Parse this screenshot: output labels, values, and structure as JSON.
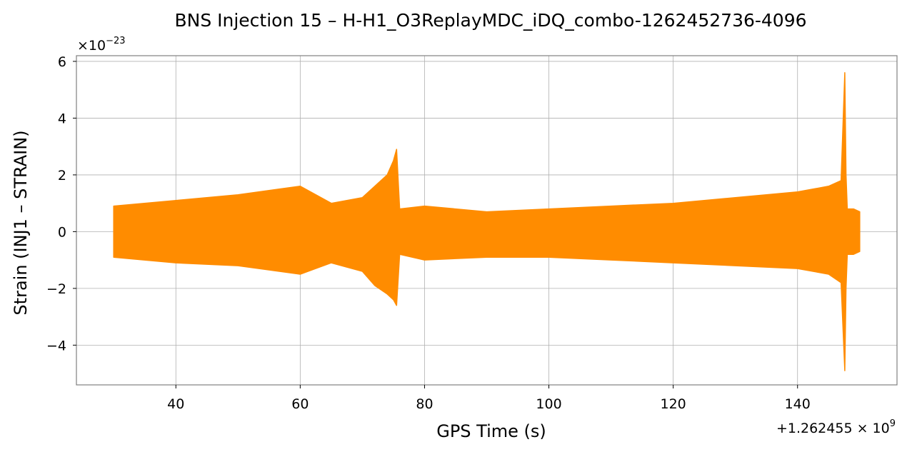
{
  "chart_data": {
    "type": "line",
    "title": "BNS Injection 15 – H-H1_O3ReplayMDC_iDQ_combo-1262452736-4096",
    "xlabel": "GPS Time (s)",
    "ylabel": "Strain (INJ1 – STRAIN)",
    "y_scale_prefix": "×10",
    "y_scale_exponent": "−23",
    "x_offset_prefix": "+1.262455 × 10",
    "x_offset_exponent": "9",
    "xlim": [
      24,
      156
    ],
    "ylim": [
      -5.4,
      6.2
    ],
    "x_ticks": [
      40,
      60,
      80,
      100,
      120,
      140
    ],
    "x_tick_labels": [
      "40",
      "60",
      "80",
      "100",
      "120",
      "140"
    ],
    "y_ticks": [
      -4,
      -2,
      0,
      2,
      4,
      6
    ],
    "y_tick_labels": [
      "−4",
      "−2",
      "0",
      "2",
      "4",
      "6"
    ],
    "grid": true,
    "series": [
      {
        "color": "#ff8c00",
        "x": [
          30,
          40,
          50,
          60,
          65,
          70,
          72,
          74,
          75,
          75.5,
          76,
          80,
          90,
          100,
          110,
          120,
          130,
          140,
          145,
          147,
          147.6,
          147.8,
          148,
          149,
          150
        ],
        "upper": [
          0.9,
          1.1,
          1.3,
          1.6,
          1.0,
          1.2,
          1.6,
          2.0,
          2.5,
          2.9,
          0.8,
          0.9,
          0.7,
          0.8,
          0.9,
          1.0,
          1.2,
          1.4,
          1.6,
          1.8,
          5.6,
          2.0,
          0.8,
          0.8,
          0.7
        ],
        "lower": [
          -0.9,
          -1.1,
          -1.2,
          -1.5,
          -1.1,
          -1.4,
          -1.9,
          -2.2,
          -2.4,
          -2.6,
          -0.8,
          -1.0,
          -0.9,
          -0.9,
          -1.0,
          -1.1,
          -1.2,
          -1.3,
          -1.5,
          -1.8,
          -4.9,
          -2.0,
          -0.8,
          -0.8,
          -0.7
        ]
      }
    ]
  }
}
